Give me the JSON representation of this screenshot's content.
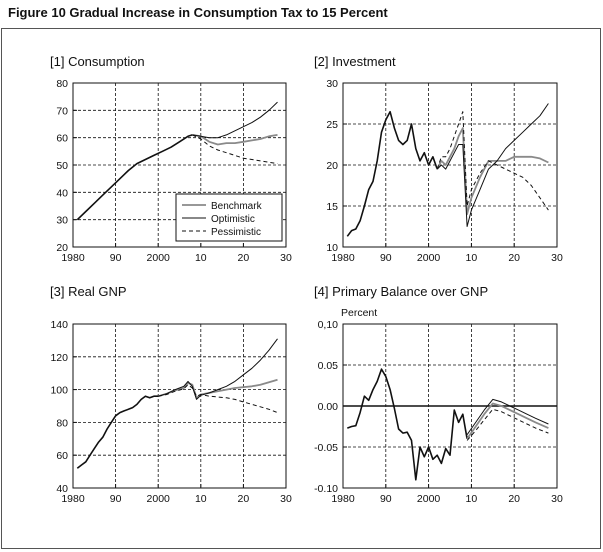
{
  "figure": {
    "title": "Figure 10   Gradual Increase in Consumption Tax to 15 Percent"
  },
  "colors": {
    "benchmark": "#8a8a8a",
    "optimistic": "#111111",
    "pessimistic": "#111111",
    "axis": "#111111",
    "grid": "#111111"
  },
  "chart_data": [
    {
      "id": "consumption",
      "type": "line",
      "title": "[1] Consumption",
      "xlim": [
        1980,
        2030
      ],
      "xticks": [
        1980,
        1990,
        2000,
        2010,
        2020,
        2030
      ],
      "xtick_labels": [
        "1980",
        "90",
        "2000",
        "10",
        "20",
        "30"
      ],
      "ylim": [
        20,
        80
      ],
      "yticks": [
        20,
        30,
        40,
        50,
        60,
        70,
        80
      ],
      "ytick_labels": [
        "20",
        "30",
        "40",
        "50",
        "60",
        "70",
        "80"
      ],
      "grid": true,
      "legend": {
        "placement": "bottom-right",
        "entries": [
          "Benchmark",
          "Optimistic",
          "Pessimistic"
        ]
      },
      "series": [
        {
          "name": "History",
          "style": "history",
          "x": [
            1981,
            1983,
            1985,
            1987,
            1989,
            1991,
            1993,
            1995,
            1997,
            1999,
            2001,
            2003,
            2005,
            2007,
            2008
          ],
          "y": [
            30,
            33,
            36,
            39,
            42,
            45,
            48,
            50.5,
            52,
            53.5,
            55,
            56.5,
            58.5,
            60.5,
            61
          ]
        },
        {
          "name": "Benchmark",
          "style": "benchmark",
          "x": [
            2008,
            2010,
            2012,
            2014,
            2016,
            2018,
            2020,
            2022,
            2024,
            2026,
            2028
          ],
          "y": [
            61,
            60.5,
            58.5,
            57.5,
            58,
            58,
            58.5,
            59,
            59.5,
            60.5,
            61
          ]
        },
        {
          "name": "Optimistic",
          "style": "optimistic",
          "x": [
            2008,
            2010,
            2012,
            2014,
            2016,
            2018,
            2020,
            2022,
            2024,
            2026,
            2028
          ],
          "y": [
            61,
            60.5,
            60,
            60,
            61,
            62.5,
            64,
            65.5,
            67.5,
            70,
            73
          ]
        },
        {
          "name": "Pessimistic",
          "style": "pessimistic",
          "x": [
            2008,
            2010,
            2012,
            2014,
            2016,
            2018,
            2020,
            2022,
            2024,
            2026,
            2028
          ],
          "y": [
            61,
            59.5,
            57,
            55.5,
            54.5,
            53.5,
            52.5,
            52,
            51.5,
            51,
            50.5
          ]
        }
      ]
    },
    {
      "id": "investment",
      "type": "line",
      "title": "[2] Investment",
      "xlim": [
        1980,
        2030
      ],
      "xticks": [
        1980,
        1990,
        2000,
        2010,
        2020,
        2030
      ],
      "xtick_labels": [
        "1980",
        "90",
        "2000",
        "10",
        "20",
        "30"
      ],
      "ylim": [
        10,
        30
      ],
      "yticks": [
        10,
        15,
        20,
        25,
        30
      ],
      "ytick_labels": [
        "10",
        "15",
        "20",
        "25",
        "30"
      ],
      "grid": true,
      "series": [
        {
          "name": "History",
          "style": "history",
          "x": [
            1981,
            1982,
            1983,
            1984,
            1985,
            1986,
            1987,
            1988,
            1989,
            1990,
            1991,
            1992,
            1993,
            1994,
            1995,
            1996,
            1997,
            1998,
            1999,
            2000,
            2001,
            2002
          ],
          "y": [
            11.3,
            12,
            12.2,
            13.2,
            15,
            17,
            18,
            20.5,
            24,
            25.5,
            26.5,
            24.5,
            23,
            22.5,
            23,
            25,
            22,
            20.5,
            21.5,
            20,
            21,
            19.5
          ]
        },
        {
          "name": "Benchmark",
          "style": "benchmark",
          "x": [
            2002,
            2003,
            2004,
            2005,
            2006,
            2007,
            2008,
            2009,
            2010,
            2012,
            2014,
            2016,
            2018,
            2020,
            2022,
            2024,
            2026,
            2028
          ],
          "y": [
            19.5,
            20.5,
            20,
            21,
            22,
            23.5,
            24.5,
            14,
            16,
            18.5,
            20.5,
            20.5,
            20.5,
            21,
            21,
            21,
            20.8,
            20.3
          ]
        },
        {
          "name": "Optimistic",
          "style": "optimistic",
          "x": [
            2002,
            2003,
            2004,
            2005,
            2006,
            2007,
            2008,
            2009,
            2010,
            2012,
            2014,
            2016,
            2018,
            2020,
            2022,
            2024,
            2026,
            2028
          ],
          "y": [
            19.5,
            20,
            19.5,
            20.5,
            21.5,
            22.5,
            22.5,
            12.5,
            14.5,
            17,
            19.5,
            20.5,
            22,
            23,
            24,
            25,
            26,
            27.5
          ]
        },
        {
          "name": "Pessimistic",
          "style": "pessimistic",
          "x": [
            2002,
            2003,
            2004,
            2005,
            2006,
            2007,
            2008,
            2009,
            2010,
            2012,
            2014,
            2016,
            2018,
            2020,
            2022,
            2024,
            2026,
            2028
          ],
          "y": [
            19.5,
            21,
            21,
            22,
            23.5,
            25,
            26.5,
            15,
            17,
            19,
            20.5,
            20,
            19.5,
            19,
            18.5,
            17.5,
            16,
            14.5
          ]
        }
      ]
    },
    {
      "id": "real-gnp",
      "type": "line",
      "title": "[3] Real GNP",
      "xlim": [
        1980,
        2030
      ],
      "xticks": [
        1980,
        1990,
        2000,
        2010,
        2020,
        2030
      ],
      "xtick_labels": [
        "1980",
        "90",
        "2000",
        "10",
        "20",
        "30"
      ],
      "ylim": [
        40,
        140
      ],
      "yticks": [
        40,
        60,
        80,
        100,
        120,
        140
      ],
      "ytick_labels": [
        "40",
        "60",
        "80",
        "100",
        "120",
        "140"
      ],
      "grid": true,
      "series": [
        {
          "name": "History",
          "style": "history",
          "x": [
            1981,
            1982,
            1983,
            1984,
            1985,
            1986,
            1987,
            1988,
            1989,
            1990,
            1991,
            1992,
            1993,
            1994,
            1995,
            1996,
            1997,
            1998,
            1999,
            2000
          ],
          "y": [
            52,
            54,
            56,
            60,
            64,
            68,
            71,
            76,
            80,
            84,
            86,
            87,
            88,
            89,
            91,
            94,
            96,
            95,
            96,
            96
          ]
        },
        {
          "name": "Benchmark",
          "style": "benchmark",
          "x": [
            2000,
            2002,
            2004,
            2006,
            2007,
            2008,
            2009,
            2010,
            2012,
            2014,
            2016,
            2018,
            2020,
            2022,
            2024,
            2026,
            2028
          ],
          "y": [
            96,
            97.5,
            99.5,
            101,
            104,
            103,
            95,
            97,
            98,
            99,
            100,
            101,
            101.5,
            102,
            103,
            104.5,
            106
          ]
        },
        {
          "name": "Optimistic",
          "style": "optimistic",
          "x": [
            2000,
            2002,
            2004,
            2006,
            2007,
            2008,
            2009,
            2010,
            2012,
            2014,
            2016,
            2018,
            2020,
            2022,
            2024,
            2026,
            2028
          ],
          "y": [
            96,
            97.5,
            100,
            102,
            105,
            102,
            94,
            96.5,
            98,
            100,
            102,
            105,
            109,
            113,
            118,
            124,
            131
          ]
        },
        {
          "name": "Pessimistic",
          "style": "pessimistic",
          "x": [
            2000,
            2002,
            2004,
            2006,
            2007,
            2008,
            2009,
            2010,
            2012,
            2014,
            2016,
            2018,
            2020,
            2022,
            2024,
            2026,
            2028
          ],
          "y": [
            96,
            97,
            99,
            100.5,
            103,
            101,
            96,
            97,
            96,
            95.5,
            95,
            94,
            92.5,
            91,
            89.5,
            88,
            86
          ]
        }
      ]
    },
    {
      "id": "primary-balance",
      "type": "line",
      "title": "[4] Primary Balance over GNP",
      "unit": "Percent",
      "xlim": [
        1980,
        2030
      ],
      "xticks": [
        1980,
        1990,
        2000,
        2010,
        2020,
        2030
      ],
      "xtick_labels": [
        "1980",
        "90",
        "2000",
        "10",
        "20",
        "30"
      ],
      "ylim": [
        -0.1,
        0.1
      ],
      "yticks": [
        -0.1,
        -0.05,
        0,
        0.05,
        0.1
      ],
      "ytick_labels": [
        "-0.10",
        "-0.05",
        "0.00",
        "0.05",
        "0,10"
      ],
      "grid": true,
      "zero_line": true,
      "series": [
        {
          "name": "History",
          "style": "history",
          "x": [
            1981,
            1982,
            1983,
            1984,
            1985,
            1986,
            1987,
            1988,
            1989,
            1990,
            1991,
            1992,
            1993,
            1994,
            1995,
            1996,
            1997,
            1998,
            1999,
            2000,
            2001,
            2002,
            2003,
            2004,
            2005,
            2006,
            2007,
            2008,
            2009
          ],
          "y": [
            -0.027,
            -0.025,
            -0.024,
            -0.008,
            0.012,
            0.007,
            0.02,
            0.03,
            0.045,
            0.036,
            0.02,
            -0.003,
            -0.028,
            -0.033,
            -0.032,
            -0.042,
            -0.09,
            -0.05,
            -0.062,
            -0.05,
            -0.065,
            -0.06,
            -0.07,
            -0.052,
            -0.06,
            -0.005,
            -0.02,
            -0.01,
            -0.04
          ]
        },
        {
          "name": "Benchmark",
          "style": "benchmark",
          "x": [
            2009,
            2011,
            2013,
            2015,
            2017,
            2019,
            2021,
            2023,
            2025,
            2028
          ],
          "y": [
            -0.04,
            -0.025,
            -0.01,
            0.003,
            0.0,
            -0.005,
            -0.01,
            -0.015,
            -0.02,
            -0.027
          ]
        },
        {
          "name": "Optimistic",
          "style": "optimistic",
          "x": [
            2009,
            2011,
            2013,
            2015,
            2017,
            2019,
            2021,
            2023,
            2025,
            2028
          ],
          "y": [
            -0.035,
            -0.02,
            -0.005,
            0.008,
            0.005,
            0.0,
            -0.005,
            -0.01,
            -0.015,
            -0.022
          ]
        },
        {
          "name": "Pessimistic",
          "style": "pessimistic",
          "x": [
            2009,
            2011,
            2013,
            2015,
            2017,
            2019,
            2021,
            2023,
            2025,
            2028
          ],
          "y": [
            -0.042,
            -0.03,
            -0.017,
            -0.004,
            -0.007,
            -0.012,
            -0.017,
            -0.022,
            -0.027,
            -0.033
          ]
        }
      ]
    }
  ]
}
